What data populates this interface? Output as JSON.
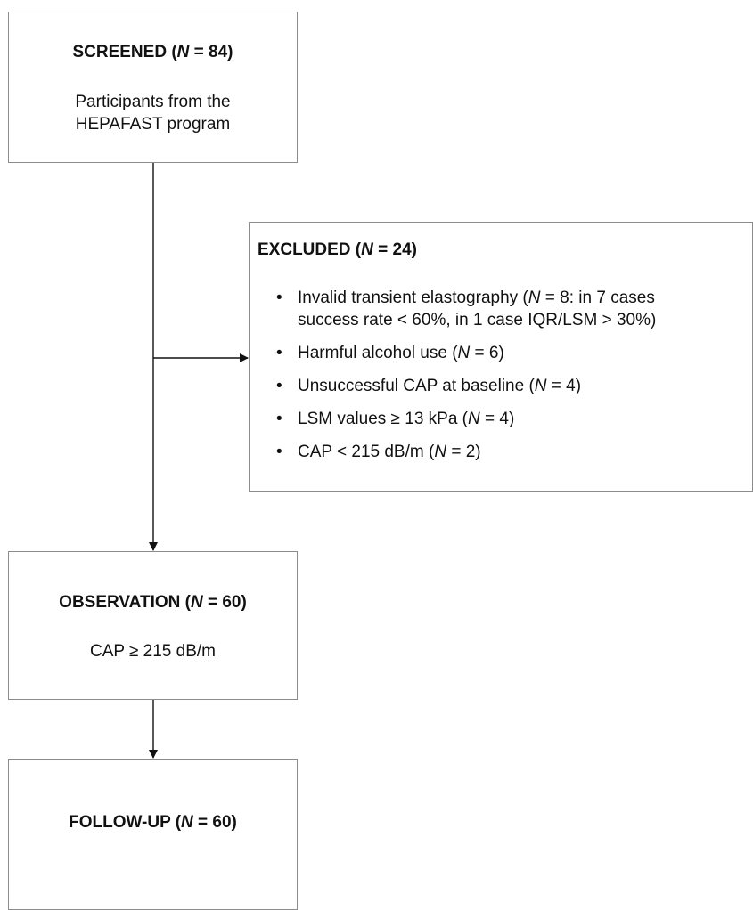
{
  "screened": {
    "title_label": "SCREENED (",
    "title_n": "N",
    "title_value": " = 84)",
    "description": "Participants from the\nHEPAFAST program"
  },
  "excluded": {
    "title_label": "EXCLUDED (",
    "title_n": "N",
    "title_value": " = 24)",
    "items": [
      {
        "before": "Invalid transient elastography (",
        "n": "N",
        "after": " = 8: in 7 cases\nsuccess rate < 60%, in 1 case IQR/LSM > 30%)"
      },
      {
        "before": "Harmful alcohol use (",
        "n": "N",
        "after": " = 6)"
      },
      {
        "before": "Unsuccessful CAP at baseline (",
        "n": "N",
        "after": " = 4)"
      },
      {
        "before": "LSM values ≥ 13 kPa (",
        "n": "N",
        "after": " = 4)"
      },
      {
        "before": "CAP < 215 dB/m (",
        "n": "N",
        "after": " = 2)"
      }
    ]
  },
  "observation": {
    "title_label": "OBSERVATION (",
    "title_n": "N",
    "title_value": " = 60)",
    "description": "CAP ≥ 215 dB/m"
  },
  "followup": {
    "title_label": "FOLLOW-UP (",
    "title_n": "N",
    "title_value": " = 60)"
  }
}
